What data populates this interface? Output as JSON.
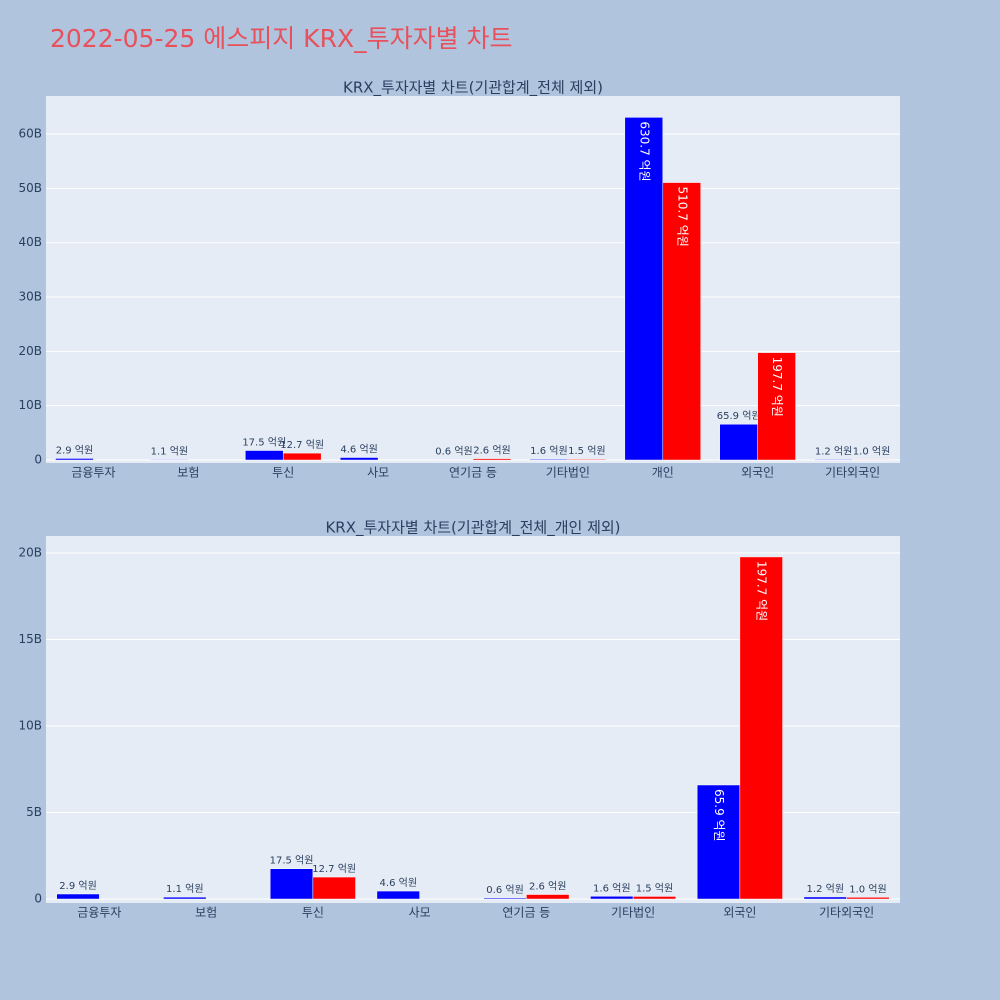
{
  "page_title": "2022-05-25 에스피지 KRX_투자자별 차트",
  "chart_data": [
    {
      "type": "bar",
      "title": "KRX_투자자별 차트(기관합계_전체 제외)",
      "categories": [
        "금융투자",
        "보험",
        "투신",
        "사모",
        "연기금 등",
        "기타법인",
        "개인",
        "외국인",
        "기타외국인"
      ],
      "series": [
        {
          "color": "#0000ff",
          "values": [
            290000000,
            110000000,
            1750000000,
            460000000,
            60000000,
            160000000,
            63070000000,
            6590000000,
            120000000
          ],
          "value_labels": [
            "2.9 억원",
            "1.1 억원",
            "17.5 억원",
            "4.6 억원",
            "0.6 억원",
            "1.6 억원",
            "630.7 억원",
            "65.9 억원",
            "1.2 억원"
          ]
        },
        {
          "color": "#ff0000",
          "values": [
            null,
            null,
            1270000000,
            null,
            260000000,
            150000000,
            51070000000,
            19770000000,
            100000000
          ],
          "value_labels": [
            null,
            null,
            "12.7 억원",
            null,
            "2.6 억원",
            "1.5 억원",
            "510.7 억원",
            "197.7 억원",
            "1.0 억원"
          ]
        }
      ],
      "ylim": [
        -550000000,
        67000000000
      ],
      "yticks": [
        0,
        {
          "value": 10000000000,
          "label": "10B"
        },
        {
          "value": 20000000000,
          "label": "20B"
        },
        {
          "value": 30000000000,
          "label": "30B"
        },
        {
          "value": 40000000000,
          "label": "40B"
        },
        {
          "value": 50000000000,
          "label": "50B"
        },
        {
          "value": 60000000000,
          "label": "60B"
        }
      ],
      "grid": true
    },
    {
      "type": "bar",
      "title": "KRX_투자자별 차트(기관합계_전체_개인 제외)",
      "categories": [
        "금융투자",
        "보험",
        "투신",
        "사모",
        "연기금 등",
        "기타법인",
        "외국인",
        "기타외국인"
      ],
      "series": [
        {
          "color": "#0000ff",
          "values": [
            290000000,
            110000000,
            1750000000,
            460000000,
            60000000,
            160000000,
            6590000000,
            120000000
          ],
          "value_labels": [
            "2.9 억원",
            "1.1 억원",
            "17.5 억원",
            "4.6 억원",
            "0.6 억원",
            "1.6 억원",
            "65.9 억원",
            "1.2 억원"
          ]
        },
        {
          "color": "#ff0000",
          "values": [
            null,
            null,
            1270000000,
            null,
            260000000,
            150000000,
            19770000000,
            100000000
          ],
          "value_labels": [
            null,
            null,
            "12.7 억원",
            null,
            "2.6 억원",
            "1.5 억원",
            "197.7 억원",
            "1.0 억원"
          ]
        }
      ],
      "ylim": [
        -230000000,
        20980000000
      ],
      "yticks": [
        0,
        {
          "value": 5000000000,
          "label": "5B"
        },
        {
          "value": 10000000000,
          "label": "10B"
        },
        {
          "value": 15000000000,
          "label": "15B"
        },
        {
          "value": 20000000000,
          "label": "20B"
        }
      ],
      "grid": true
    }
  ]
}
